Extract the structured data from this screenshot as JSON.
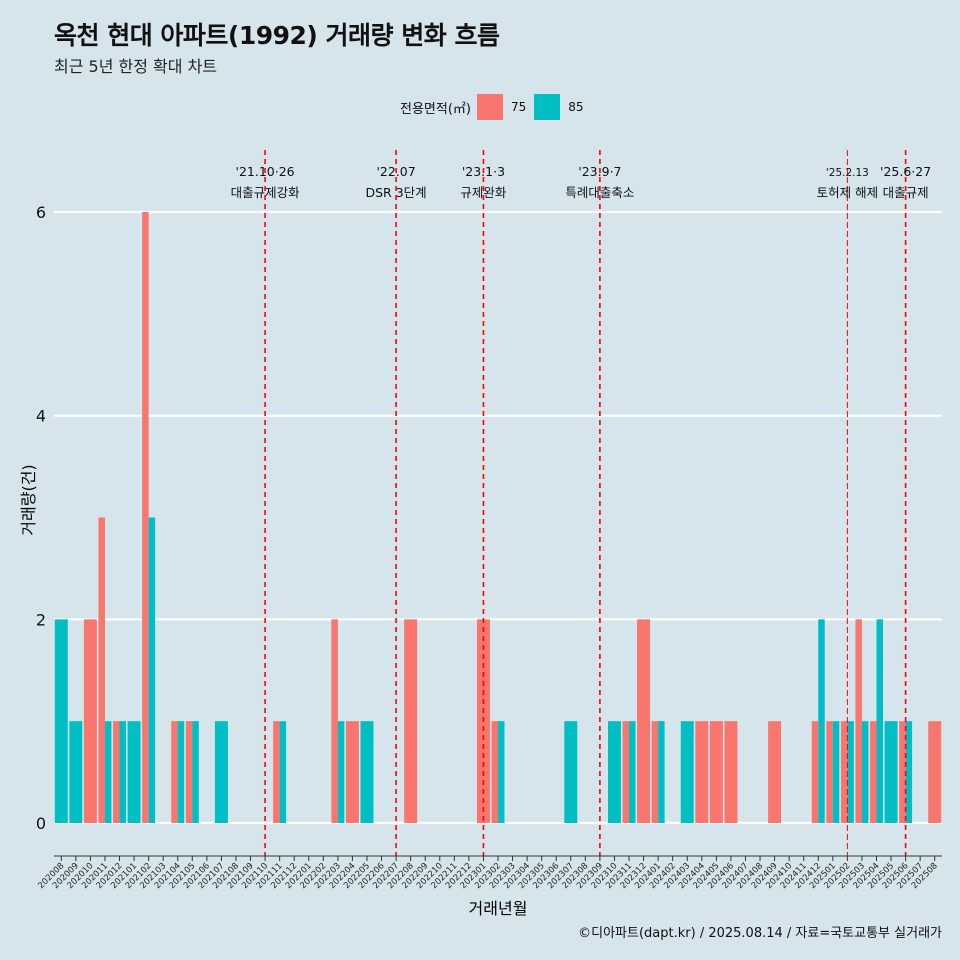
{
  "title": "옥천 현대 아파트(1992) 거래량 변화 흐름",
  "subtitle": "최근 5년 한정 확대 차트",
  "caption": "©디아파트(dapt.kr) / 2025.08.14 / 자료=국토교통부 실거래가",
  "legend": {
    "title": "전용면적(㎡)",
    "items": [
      {
        "label": "75",
        "color": "#f8766d"
      },
      {
        "label": "85",
        "color": "#00bfc4"
      }
    ]
  },
  "chart_data": {
    "type": "bar",
    "xlabel": "거래년월",
    "ylabel": "거래량(건)",
    "ylim": [
      0,
      6
    ],
    "yticks": [
      0,
      2,
      4,
      6
    ],
    "grid": true,
    "legend_position": "top",
    "categories": [
      "202008",
      "202009",
      "202010",
      "202011",
      "202012",
      "202101",
      "202102",
      "202103",
      "202104",
      "202105",
      "202106",
      "202107",
      "202108",
      "202109",
      "202110",
      "202111",
      "202112",
      "202201",
      "202202",
      "202203",
      "202204",
      "202205",
      "202206",
      "202207",
      "202208",
      "202209",
      "202210",
      "202211",
      "202212",
      "202301",
      "202302",
      "202303",
      "202304",
      "202305",
      "202306",
      "202307",
      "202308",
      "202309",
      "202310",
      "202311",
      "202312",
      "202401",
      "202402",
      "202403",
      "202404",
      "202405",
      "202406",
      "202407",
      "202408",
      "202409",
      "202410",
      "202411",
      "202412",
      "202501",
      "202502",
      "202503",
      "202504",
      "202505",
      "202506",
      "202507",
      "202508"
    ],
    "series": [
      {
        "name": "75",
        "color": "#f8766d",
        "values": [
          0,
          0,
          2,
          3,
          1,
          0,
          6,
          0,
          1,
          1,
          0,
          0,
          0,
          0,
          0,
          1,
          0,
          0,
          0,
          2,
          1,
          0,
          0,
          0,
          2,
          0,
          0,
          0,
          0,
          2,
          1,
          0,
          0,
          0,
          0,
          0,
          0,
          0,
          0,
          1,
          2,
          1,
          0,
          0,
          1,
          1,
          1,
          0,
          0,
          1,
          0,
          0,
          1,
          1,
          1,
          2,
          1,
          0,
          1,
          0,
          1
        ]
      },
      {
        "name": "85",
        "color": "#00bfc4",
        "values": [
          2,
          1,
          0,
          1,
          1,
          1,
          3,
          0,
          1,
          1,
          0,
          1,
          0,
          0,
          0,
          1,
          0,
          0,
          0,
          1,
          0,
          1,
          0,
          0,
          0,
          0,
          0,
          0,
          0,
          0,
          1,
          0,
          0,
          0,
          0,
          1,
          0,
          0,
          1,
          1,
          0,
          1,
          0,
          1,
          0,
          0,
          0,
          0,
          0,
          0,
          0,
          0,
          2,
          1,
          1,
          1,
          2,
          1,
          1,
          0,
          0
        ]
      }
    ],
    "annotations": [
      {
        "date": "202110",
        "line1": "'21.10·26",
        "line2": "대출규제강화",
        "style": "dashed"
      },
      {
        "date": "202207",
        "line1": "'22.07",
        "line2": "DSR 3단계",
        "style": "dashed"
      },
      {
        "date": "202301",
        "line1": "'23.1·3",
        "line2": "규제완화",
        "style": "dashed"
      },
      {
        "date": "202309",
        "line1": "'23.9·7",
        "line2": "특례대출축소",
        "style": "dashed"
      },
      {
        "date": "202502",
        "line1": "'25.2.13",
        "line2": "토허제 해제",
        "style": "thin"
      },
      {
        "date": "202506",
        "line1": "'25.6·27",
        "line2": "대출규제",
        "style": "dashed"
      }
    ]
  }
}
